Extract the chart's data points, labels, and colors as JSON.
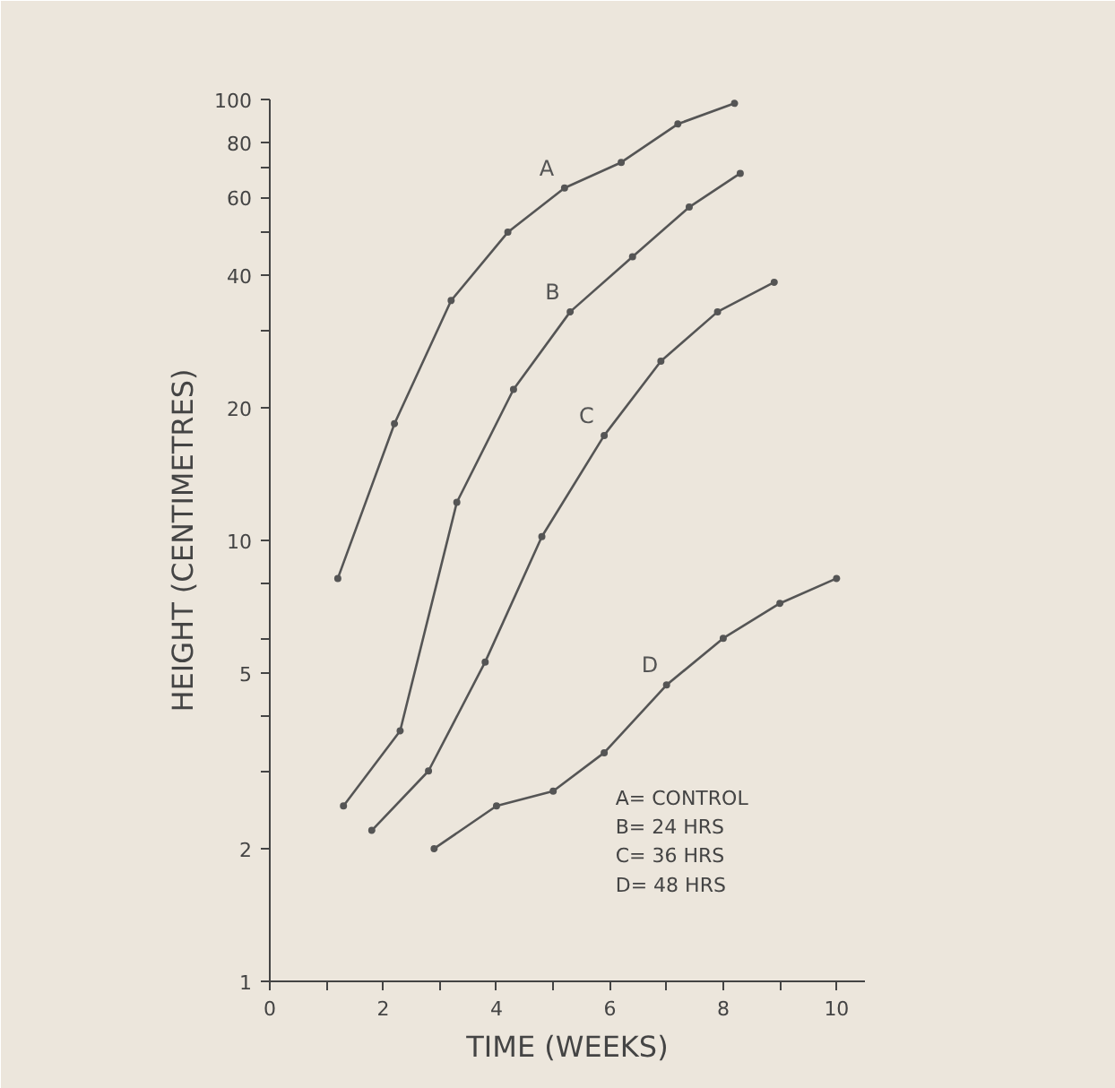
{
  "chart_data": {
    "type": "line",
    "xlabel": "TIME (WEEKS)",
    "ylabel": "HEIGHT (CENTIMETRES)",
    "log": "y",
    "marker": "circle",
    "line_style": "solid",
    "grid": false,
    "xlim": [
      0,
      10.5
    ],
    "ylim": [
      1,
      100
    ],
    "xticks": [
      0,
      {
        "value": 1,
        "label": null
      },
      2,
      {
        "value": 3,
        "label": null
      },
      4,
      {
        "value": 5,
        "label": null
      },
      6,
      {
        "value": 7,
        "label": null
      },
      8,
      {
        "value": 9,
        "label": null
      },
      10
    ],
    "yticks": [
      1,
      2,
      {
        "value": 3,
        "label": null
      },
      {
        "value": 4,
        "label": null
      },
      5,
      {
        "value": 6,
        "label": null
      },
      {
        "value": 8,
        "label": null
      },
      10,
      20,
      {
        "value": 30,
        "label": null
      },
      40,
      {
        "value": 50,
        "label": null
      },
      60,
      {
        "value": 70,
        "label": null
      },
      80,
      100
    ],
    "series": [
      {
        "name": "A",
        "color": "#555555",
        "x": [
          1.2,
          2.2,
          3.2,
          4.2,
          5.2,
          6.2,
          7.2,
          8.2
        ],
        "values": [
          8.2,
          18.4,
          35,
          50,
          63,
          72,
          88,
          98
        ]
      },
      {
        "name": "B",
        "color": "#555555",
        "x": [
          1.3,
          2.3,
          3.3,
          4.3,
          5.3,
          6.4,
          7.4,
          8.3
        ],
        "values": [
          2.5,
          3.7,
          12.2,
          22,
          33,
          44,
          57,
          68
        ]
      },
      {
        "name": "C",
        "color": "#555555",
        "x": [
          1.8,
          2.8,
          3.8,
          4.8,
          5.9,
          6.9,
          7.9,
          8.9
        ],
        "values": [
          2.2,
          3.0,
          5.3,
          10.2,
          17.3,
          25.5,
          33,
          38.5
        ]
      },
      {
        "name": "D",
        "color": "#555555",
        "x": [
          2.9,
          4.0,
          5.0,
          5.9,
          7.0,
          8.0,
          9.0,
          10.0
        ],
        "values": [
          2.0,
          2.5,
          2.7,
          3.3,
          4.7,
          6.0,
          7.2,
          8.2
        ]
      }
    ],
    "annotations": [
      "A= CONTROL",
      "B= 24 HRS",
      "C= 36 HRS",
      "D= 48 HRS"
    ]
  }
}
